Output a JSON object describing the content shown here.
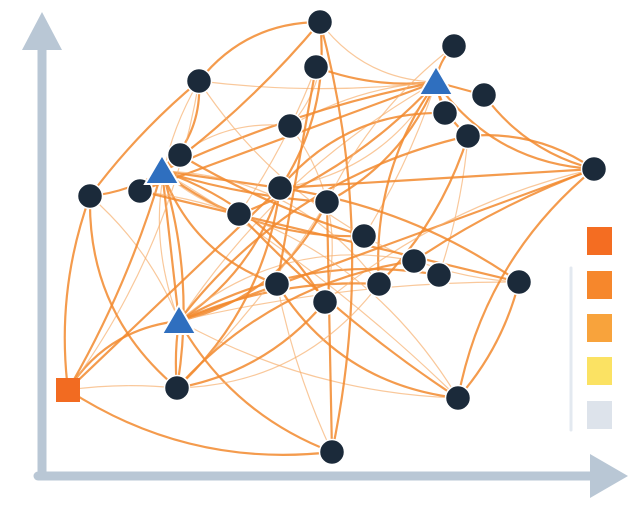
{
  "colors": {
    "axis": "#b9c7d5",
    "node": "#1b2a3a",
    "triangle": "#2f6fbf",
    "square": "#f26b21",
    "edge": "#f28a2e",
    "edge_faint": "#f7b070"
  },
  "legend": {
    "swatches": [
      "#f46d22",
      "#f6872c",
      "#f8a33c",
      "#fbe263",
      "#dde3eb"
    ]
  },
  "nodes": [
    {
      "shape": "circle"
    },
    {
      "shape": "circle"
    },
    {
      "shape": "circle"
    },
    {
      "shape": "circle"
    },
    {
      "shape": "circle"
    },
    {
      "shape": "circle"
    },
    {
      "shape": "circle"
    },
    {
      "shape": "circle"
    },
    {
      "shape": "circle"
    },
    {
      "shape": "circle"
    },
    {
      "shape": "circle"
    },
    {
      "shape": "circle"
    },
    {
      "shape": "circle"
    },
    {
      "shape": "circle"
    },
    {
      "shape": "circle"
    },
    {
      "shape": "circle"
    },
    {
      "shape": "circle"
    },
    {
      "shape": "circle"
    },
    {
      "shape": "circle"
    },
    {
      "shape": "circle"
    },
    {
      "shape": "circle"
    },
    {
      "shape": "circle"
    },
    {
      "shape": "circle"
    },
    {
      "shape": "circle"
    },
    {
      "shape": "circle"
    },
    {
      "shape": "triangle"
    },
    {
      "shape": "triangle"
    },
    {
      "shape": "triangle"
    },
    {
      "shape": "square"
    }
  ],
  "edges": [
    [
      25,
      0
    ],
    [
      25,
      1
    ],
    [
      25,
      2
    ],
    [
      25,
      3
    ],
    [
      25,
      4
    ],
    [
      25,
      5
    ],
    [
      25,
      6
    ],
    [
      25,
      7
    ],
    [
      25,
      9
    ],
    [
      25,
      12
    ],
    [
      25,
      13
    ],
    [
      25,
      14
    ],
    [
      25,
      15
    ],
    [
      25,
      11
    ],
    [
      25,
      26
    ],
    [
      25,
      27
    ],
    [
      25,
      19
    ],
    [
      26,
      3
    ],
    [
      26,
      6
    ],
    [
      26,
      8
    ],
    [
      26,
      10
    ],
    [
      26,
      11
    ],
    [
      26,
      12
    ],
    [
      26,
      13
    ],
    [
      26,
      14
    ],
    [
      26,
      15
    ],
    [
      26,
      18
    ],
    [
      26,
      19
    ],
    [
      26,
      21
    ],
    [
      26,
      22
    ],
    [
      26,
      23
    ],
    [
      26,
      27
    ],
    [
      26,
      0
    ],
    [
      27,
      10
    ],
    [
      27,
      12
    ],
    [
      27,
      13
    ],
    [
      27,
      16
    ],
    [
      27,
      17
    ],
    [
      27,
      19
    ],
    [
      27,
      20
    ],
    [
      27,
      9
    ],
    [
      27,
      22
    ],
    [
      27,
      23
    ],
    [
      27,
      24
    ],
    [
      27,
      28
    ],
    [
      27,
      3
    ],
    [
      27,
      7
    ],
    [
      28,
      10
    ],
    [
      28,
      22
    ],
    [
      28,
      12
    ],
    [
      28,
      26
    ],
    [
      28,
      3
    ],
    [
      28,
      24
    ],
    [
      0,
      3
    ],
    [
      0,
      6
    ],
    [
      0,
      12
    ],
    [
      0,
      24
    ],
    [
      2,
      14
    ],
    [
      2,
      18
    ],
    [
      3,
      10
    ],
    [
      3,
      15
    ],
    [
      4,
      9
    ],
    [
      5,
      12
    ],
    [
      6,
      21
    ],
    [
      7,
      9
    ],
    [
      7,
      19
    ],
    [
      7,
      17
    ],
    [
      9,
      12
    ],
    [
      9,
      16
    ],
    [
      9,
      21
    ],
    [
      9,
      23
    ],
    [
      10,
      22
    ],
    [
      11,
      23
    ],
    [
      12,
      22
    ],
    [
      12,
      20
    ],
    [
      13,
      22
    ],
    [
      13,
      24
    ],
    [
      14,
      23
    ],
    [
      15,
      20
    ],
    [
      16,
      22
    ],
    [
      18,
      23
    ],
    [
      19,
      22
    ],
    [
      21,
      22
    ],
    [
      20,
      23
    ],
    [
      24,
      18
    ],
    [
      11,
      20
    ],
    [
      8,
      15
    ],
    [
      1,
      13
    ]
  ]
}
